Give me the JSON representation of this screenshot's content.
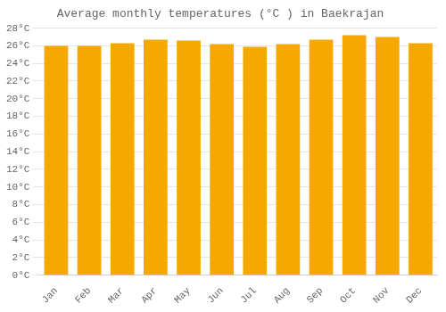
{
  "chart_data": {
    "type": "bar",
    "title": "Average monthly temperatures (°C ) in Baekrajan",
    "categories": [
      "Jan",
      "Feb",
      "Mar",
      "Apr",
      "May",
      "Jun",
      "Jul",
      "Aug",
      "Sep",
      "Oct",
      "Nov",
      "Dec"
    ],
    "values": [
      26.0,
      26.0,
      26.3,
      26.7,
      26.6,
      26.2,
      25.9,
      26.2,
      26.7,
      27.2,
      27.0,
      26.3
    ],
    "color": "#F5A800",
    "ylim": [
      0,
      28
    ],
    "yticks": [
      {
        "value": 0,
        "label": "0°C"
      },
      {
        "value": 2,
        "label": "2°C"
      },
      {
        "value": 4,
        "label": "4°C"
      },
      {
        "value": 6,
        "label": "6°C"
      },
      {
        "value": 8,
        "label": "8°C"
      },
      {
        "value": 10,
        "label": "10°C"
      },
      {
        "value": 12,
        "label": "12°C"
      },
      {
        "value": 14,
        "label": "14°C"
      },
      {
        "value": 16,
        "label": "16°C"
      },
      {
        "value": 18,
        "label": "18°C"
      },
      {
        "value": 20,
        "label": "20°C"
      },
      {
        "value": 22,
        "label": "22°C"
      },
      {
        "value": 24,
        "label": "24°C"
      },
      {
        "value": 26,
        "label": "26°C"
      },
      {
        "value": 28,
        "label": "28°C"
      }
    ],
    "grid": true
  }
}
